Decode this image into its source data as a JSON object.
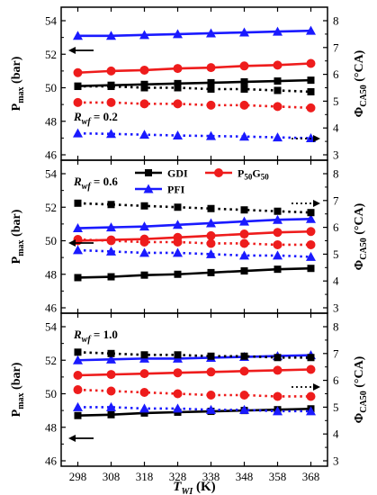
{
  "chart_data": {
    "type": "line",
    "x": [
      298,
      308,
      318,
      328,
      338,
      348,
      358,
      368
    ],
    "x_tick_labels": [
      "298",
      "308",
      "318",
      "328",
      "338",
      "348",
      "358",
      "368"
    ],
    "xlabel_base": "T",
    "xlabel_sub": "WI",
    "xlabel_unit": " (K)",
    "xlim": [
      293,
      373
    ],
    "left_axis": {
      "label_base": "P",
      "label_sub": "max",
      "label_unit": " (bar)",
      "ylim": [
        46,
        54
      ],
      "ticks": [
        "46",
        "48",
        "50",
        "52",
        "54"
      ],
      "tick_values": [
        46,
        48,
        50,
        52,
        54
      ]
    },
    "right_axis": {
      "label_base": "Φ",
      "label_sub": "CA50",
      "label_unit": " (°CA)",
      "ylim": [
        3,
        8
      ],
      "ticks": [
        "3",
        "4",
        "5",
        "6",
        "7",
        "8"
      ],
      "tick_values": [
        3,
        4,
        5,
        6,
        7,
        8
      ]
    },
    "legend": {
      "placement": "top of middle panel",
      "entries": [
        {
          "base": "GDI",
          "sub1": "",
          "mid": "",
          "sub2": "",
          "color": "#000000",
          "marker": "square"
        },
        {
          "base": "P",
          "sub1": "50",
          "mid": "G",
          "sub2": "50",
          "color": "#ee1c1c",
          "marker": "circle"
        },
        {
          "base": "PFI",
          "sub1": "",
          "mid": "",
          "sub2": "",
          "color": "#1a1aff",
          "marker": "triangle"
        }
      ]
    },
    "panels": [
      {
        "annotation": {
          "base": "R",
          "sub": "wf",
          "value": " = 0.2"
        },
        "series": [
          {
            "fuel": "GDI",
            "axis": "left",
            "style": "solid",
            "color": "#000000",
            "marker": "square",
            "values": [
              50.1,
              50.15,
              50.2,
              50.25,
              50.3,
              50.35,
              50.4,
              50.45
            ]
          },
          {
            "fuel": "P50G50",
            "axis": "left",
            "style": "solid",
            "color": "#ee1c1c",
            "marker": "circle",
            "values": [
              50.9,
              51.0,
              51.05,
              51.15,
              51.2,
              51.3,
              51.35,
              51.45
            ]
          },
          {
            "fuel": "PFI",
            "axis": "left",
            "style": "solid",
            "color": "#1a1aff",
            "marker": "triangle",
            "values": [
              53.1,
              53.1,
              53.15,
              53.2,
              53.25,
              53.3,
              53.35,
              53.4
            ]
          },
          {
            "fuel": "GDI",
            "axis": "right",
            "style": "dotted",
            "color": "#000000",
            "marker": "square",
            "values": [
              5.55,
              5.55,
              5.5,
              5.5,
              5.45,
              5.45,
              5.4,
              5.35
            ]
          },
          {
            "fuel": "P50G50",
            "axis": "right",
            "style": "dotted",
            "color": "#ee1c1c",
            "marker": "circle",
            "values": [
              4.95,
              4.95,
              4.9,
              4.9,
              4.85,
              4.85,
              4.8,
              4.75
            ]
          },
          {
            "fuel": "PFI",
            "axis": "right",
            "style": "dotted",
            "color": "#1a1aff",
            "marker": "triangle",
            "values": [
              3.8,
              3.78,
              3.75,
              3.72,
              3.7,
              3.68,
              3.65,
              3.62
            ]
          }
        ]
      },
      {
        "annotation": {
          "base": "R",
          "sub": "wf",
          "value": " = 0.6"
        },
        "series": [
          {
            "fuel": "GDI",
            "axis": "left",
            "style": "solid",
            "color": "#000000",
            "marker": "square",
            "values": [
              47.8,
              47.85,
              47.95,
              48.0,
              48.1,
              48.2,
              48.3,
              48.35
            ]
          },
          {
            "fuel": "P50G50",
            "axis": "left",
            "style": "solid",
            "color": "#ee1c1c",
            "marker": "circle",
            "values": [
              50.0,
              50.05,
              50.1,
              50.2,
              50.3,
              50.4,
              50.5,
              50.55
            ]
          },
          {
            "fuel": "PFI",
            "axis": "left",
            "style": "solid",
            "color": "#1a1aff",
            "marker": "triangle",
            "values": [
              50.75,
              50.8,
              50.85,
              50.95,
              51.05,
              51.15,
              51.25,
              51.3
            ]
          },
          {
            "fuel": "GDI",
            "axis": "right",
            "style": "dotted",
            "color": "#000000",
            "marker": "square",
            "values": [
              6.9,
              6.85,
              6.8,
              6.75,
              6.7,
              6.65,
              6.6,
              6.55
            ]
          },
          {
            "fuel": "P50G50",
            "axis": "right",
            "style": "dotted",
            "color": "#ee1c1c",
            "marker": "circle",
            "values": [
              5.55,
              5.5,
              5.45,
              5.45,
              5.4,
              5.4,
              5.35,
              5.35
            ]
          },
          {
            "fuel": "PFI",
            "axis": "right",
            "style": "dotted",
            "color": "#1a1aff",
            "marker": "triangle",
            "values": [
              5.15,
              5.1,
              5.05,
              5.05,
              5.0,
              4.95,
              4.95,
              4.9
            ]
          }
        ]
      },
      {
        "annotation": {
          "base": "R",
          "sub": "wf",
          "value": " = 1.0"
        },
        "series": [
          {
            "fuel": "GDI",
            "axis": "left",
            "style": "solid",
            "color": "#000000",
            "marker": "square",
            "values": [
              48.7,
              48.75,
              48.85,
              48.9,
              48.95,
              49.0,
              49.05,
              49.1
            ]
          },
          {
            "fuel": "P50G50",
            "axis": "left",
            "style": "solid",
            "color": "#ee1c1c",
            "marker": "circle",
            "values": [
              51.1,
              51.15,
              51.2,
              51.25,
              51.3,
              51.35,
              51.4,
              51.45
            ]
          },
          {
            "fuel": "PFI",
            "axis": "left",
            "style": "solid",
            "color": "#1a1aff",
            "marker": "triangle",
            "values": [
              52.0,
              52.05,
              52.1,
              52.1,
              52.15,
              52.2,
              52.25,
              52.3
            ]
          },
          {
            "fuel": "GDI",
            "axis": "right",
            "style": "dotted",
            "color": "#000000",
            "marker": "square",
            "values": [
              7.05,
              7.0,
              6.95,
              6.95,
              6.9,
              6.9,
              6.85,
              6.85
            ]
          },
          {
            "fuel": "P50G50",
            "axis": "right",
            "style": "dotted",
            "color": "#ee1c1c",
            "marker": "circle",
            "values": [
              5.65,
              5.6,
              5.55,
              5.5,
              5.45,
              5.45,
              5.4,
              5.4
            ]
          },
          {
            "fuel": "PFI",
            "axis": "right",
            "style": "dotted",
            "color": "#1a1aff",
            "marker": "triangle",
            "values": [
              5.0,
              5.0,
              4.95,
              4.95,
              4.9,
              4.9,
              4.85,
              4.85
            ]
          }
        ]
      }
    ]
  }
}
